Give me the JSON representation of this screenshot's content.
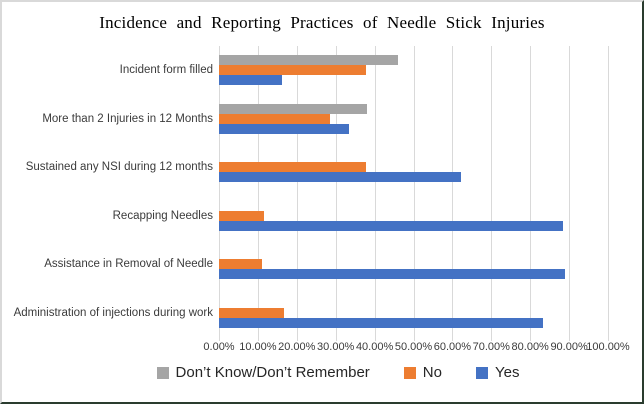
{
  "chart_data": {
    "type": "bar",
    "orientation": "horizontal",
    "title": "Incidence and Reporting Practices of Needle Stick Injuries",
    "categories": [
      "Incident form filled",
      "More than 2 Injuries in 12 Months",
      "Sustained any NSI during 12 months",
      "Recapping Needles",
      "Assistance in Removal of Needle",
      "Administration of injections during work"
    ],
    "series": [
      {
        "name": "Don’t Know/Don’t Remember",
        "color": "#A5A5A5",
        "values": [
          45.9,
          38.1,
          0,
          0,
          0,
          0
        ]
      },
      {
        "name": "No",
        "color": "#ED7D31",
        "values": [
          37.8,
          28.6,
          37.8,
          11.5,
          11.1,
          16.7
        ]
      },
      {
        "name": "Yes",
        "color": "#4472C4",
        "values": [
          16.2,
          33.3,
          62.2,
          88.5,
          88.9,
          83.3
        ]
      }
    ],
    "x_axis": {
      "min": 0,
      "max": 100,
      "step": 10,
      "unit": "%",
      "tick_labels": [
        "0.00%",
        "10.00%",
        "20.00%",
        "30.00%",
        "40.00%",
        "50.00%",
        "60.00%",
        "70.00%",
        "80.00%",
        "90.00%",
        "100.00%"
      ]
    },
    "legend_position": "bottom",
    "grid": true,
    "gridline_color": "#D9D9D9",
    "text_color": "#3b3b3b"
  }
}
